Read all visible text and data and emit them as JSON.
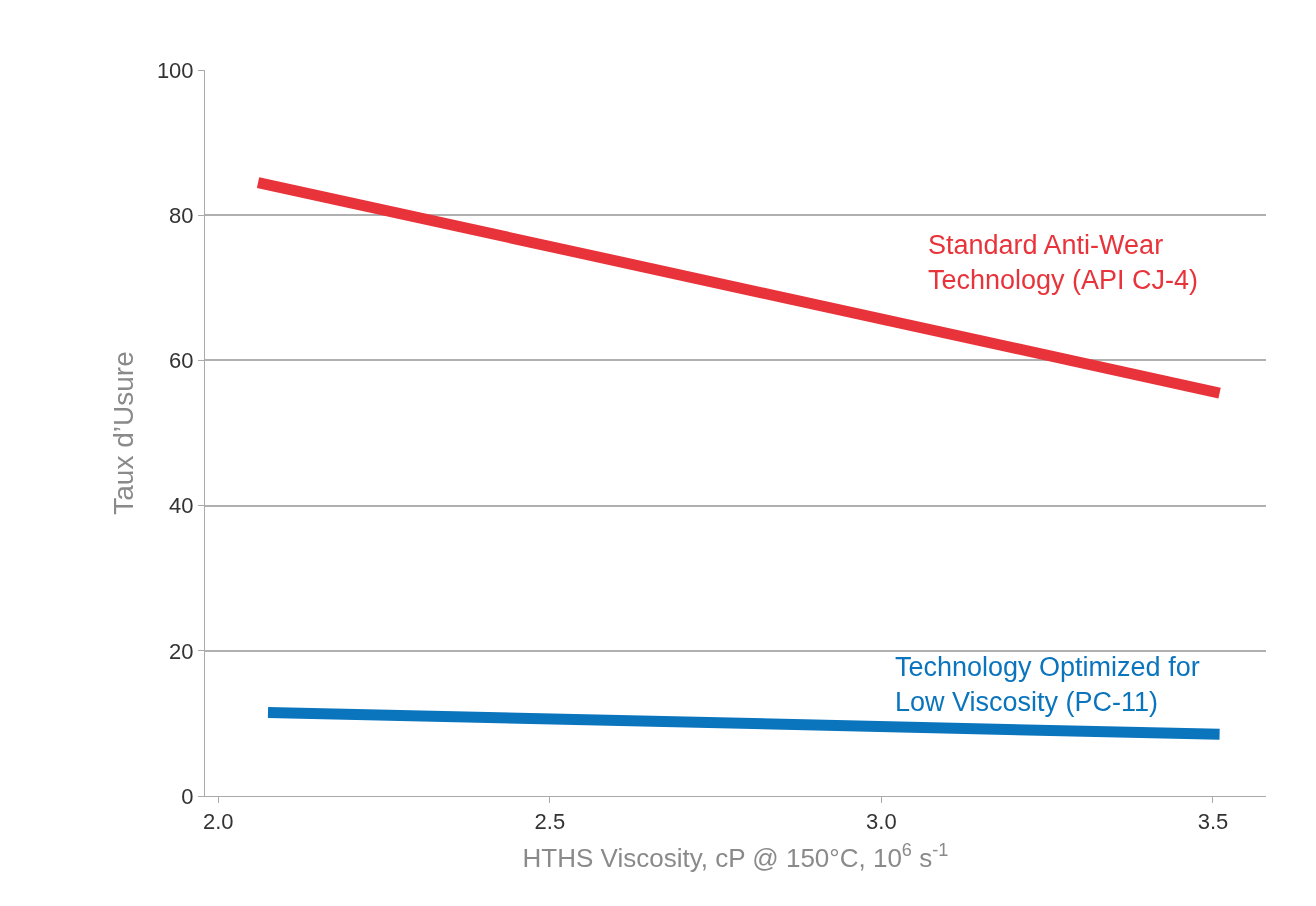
{
  "chart_data": {
    "type": "line",
    "xlabel": "HTHS Viscosity, cP @ 150°C, 10$^{6}$ s$^{-1}$",
    "ylabel": "Taux d’Usure",
    "series": [
      {
        "name": "Standard Anti-Wear\nTechnology (API CJ-4)",
        "color": "#e8333a",
        "x": [
          2.06,
          3.51
        ],
        "values": [
          84.5,
          55.5
        ]
      },
      {
        "name": "Technology Optimized for\nLow Viscosity (PC-11)",
        "color": "#0a74bd",
        "x": [
          2.075,
          3.51
        ],
        "values": [
          11.5,
          8.5
        ]
      }
    ],
    "xlim": [
      1.98,
      3.58
    ],
    "xticks": [
      {
        "value": 2.0,
        "label": "2.0"
      },
      {
        "value": 2.5,
        "label": "2.5"
      },
      {
        "value": 3.0,
        "label": "3.0"
      },
      {
        "value": 3.5,
        "label": "3.5"
      }
    ],
    "ylim": [
      0,
      100
    ],
    "yticks": [
      0,
      20,
      40,
      60,
      80,
      100
    ],
    "grid": "y",
    "legend": false,
    "marker": "none",
    "line_style": "solid"
  }
}
